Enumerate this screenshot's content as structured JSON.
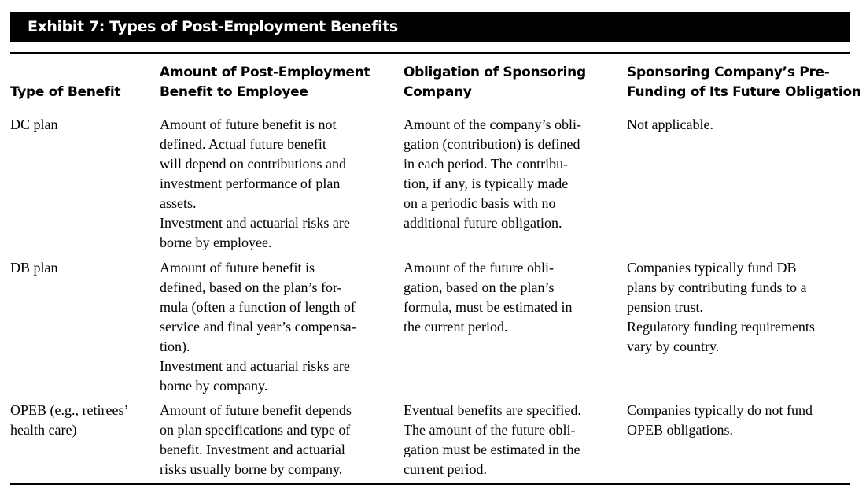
{
  "exhibit": {
    "title": "Exhibit 7: Types of Post-Employment Benefits"
  },
  "headers": {
    "col1": [
      "Type of Benefit"
    ],
    "col2": [
      "Amount of Post-Employment",
      "Benefit to Employee"
    ],
    "col3": [
      "Obligation of Sponsoring",
      "Company"
    ],
    "col4": [
      "Sponsoring Company’s Pre-",
      "Funding of Its Future Obligation"
    ]
  },
  "rows": [
    {
      "type": [
        "DC plan"
      ],
      "benefit": [
        "Amount of future benefit is not",
        "defined. Actual future benefit",
        "will depend on contributions and",
        "investment performance of plan",
        "assets.",
        "Investment and actuarial risks are",
        "borne by employee."
      ],
      "obligation": [
        "Amount of the company’s obli-",
        "gation (contribution) is defined",
        "in each period. The contribu-",
        "tion, if any, is typically made",
        "on a periodic basis with no",
        "additional future obligation."
      ],
      "funding": [
        "Not applicable."
      ]
    },
    {
      "type": [
        "DB plan"
      ],
      "benefit": [
        "Amount of future benefit is",
        "defined, based on the plan’s for-",
        "mula (often a function of length of",
        "service and final year’s compensa-",
        "tion).",
        "Investment and actuarial risks are",
        "borne by company."
      ],
      "obligation": [
        "Amount of the future obli-",
        "gation, based on the plan’s",
        "formula, must be estimated in",
        "the current period."
      ],
      "funding": [
        "Companies typically fund DB",
        "plans by contributing funds to a",
        "pension trust.",
        "Regulatory funding requirements",
        "vary by country."
      ]
    },
    {
      "type": [
        "OPEB (e.g., retirees’",
        "health care)"
      ],
      "benefit": [
        "Amount of future benefit depends",
        "on plan specifications and type of",
        "benefit. Investment and actuarial",
        "risks usually borne by company."
      ],
      "obligation": [
        "Eventual benefits are specified.",
        "The amount of the future obli-",
        "gation must be estimated in the",
        "current period."
      ],
      "funding": [
        "Companies typically do not fund",
        "OPEB obligations."
      ]
    }
  ]
}
